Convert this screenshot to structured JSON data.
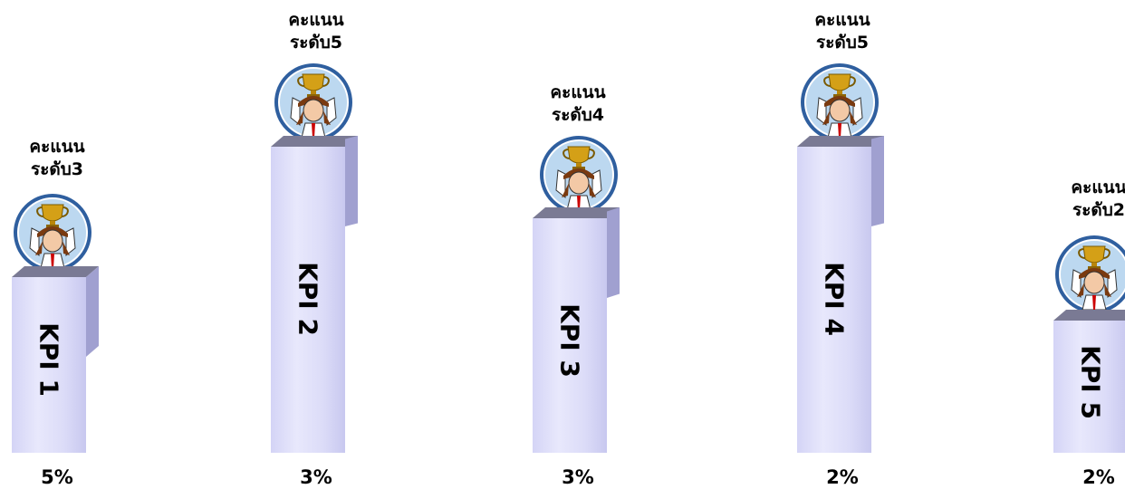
{
  "kpis": [
    {
      "name": "KPI 1",
      "score_line1": "คะแนน",
      "score_line2": "ระดับ3",
      "weight": "5%"
    },
    {
      "name": "KPI 2",
      "score_line1": "คะแนน",
      "score_line2": "ระดับ5",
      "weight": "3%"
    },
    {
      "name": "KPI 3",
      "score_line1": "คะแนน",
      "score_line2": "ระดับ4",
      "weight": "3%"
    },
    {
      "name": "KPI 4",
      "score_line1": "คะแนน",
      "score_line2": "ระดับ5",
      "weight": "2%"
    },
    {
      "name": "KPI 5",
      "score_line1": "คะแนน",
      "score_line2": "ระดับ2",
      "weight": "2%"
    }
  ],
  "medal_icon": "trophy-medal-icon",
  "colors": {
    "pillar_front": "#dcdcf8",
    "pillar_side": "#a0a0d0",
    "pillar_top": "#7a7a94",
    "medal_ring": "#2f5f9f",
    "trophy_gold": "#d4a017"
  }
}
